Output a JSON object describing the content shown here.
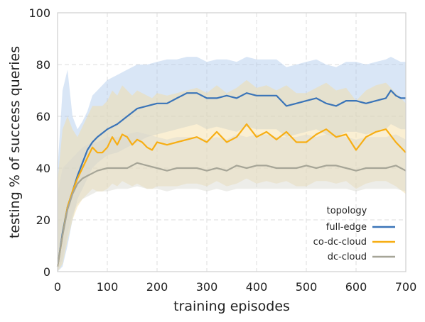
{
  "chart_data": {
    "type": "line",
    "title": "",
    "xlabel": "training episodes",
    "ylabel": "testing % of success queries",
    "xlim": [
      0,
      700
    ],
    "ylim": [
      0,
      100
    ],
    "xticks": [
      0,
      100,
      200,
      300,
      400,
      500,
      600,
      700
    ],
    "yticks": [
      0,
      20,
      40,
      60,
      80,
      100
    ],
    "grid": true,
    "legend": {
      "title": "topology",
      "position": "lower-right"
    },
    "series": [
      {
        "name": "full-edge",
        "color": "#3a74b8",
        "band_color": "#aac8ea",
        "x": [
          0,
          10,
          20,
          30,
          40,
          50,
          60,
          70,
          80,
          100,
          120,
          140,
          160,
          180,
          200,
          220,
          240,
          260,
          280,
          300,
          320,
          340,
          360,
          380,
          400,
          420,
          440,
          460,
          480,
          500,
          520,
          540,
          560,
          580,
          600,
          620,
          640,
          660,
          670,
          680,
          690,
          700
        ],
        "y": [
          2,
          15,
          25,
          31,
          37,
          42,
          47,
          50,
          52,
          55,
          57,
          60,
          63,
          64,
          65,
          65,
          67,
          69,
          69,
          67,
          67,
          68,
          67,
          69,
          68,
          68,
          68,
          64,
          65,
          66,
          67,
          65,
          64,
          66,
          66,
          65,
          66,
          67,
          70,
          68,
          67,
          67
        ],
        "lower": [
          0,
          2,
          10,
          20,
          28,
          32,
          36,
          40,
          42,
          45,
          46,
          48,
          50,
          52,
          53,
          54,
          55,
          56,
          57,
          55,
          56,
          55,
          54,
          56,
          55,
          55,
          55,
          52,
          53,
          54,
          55,
          53,
          52,
          54,
          54,
          53,
          54,
          55,
          57,
          56,
          55,
          55
        ],
        "upper": [
          40,
          70,
          78,
          60,
          55,
          58,
          62,
          68,
          70,
          74,
          76,
          78,
          80,
          80,
          81,
          82,
          82,
          83,
          83,
          81,
          82,
          82,
          81,
          83,
          82,
          82,
          82,
          79,
          80,
          81,
          82,
          80,
          79,
          81,
          81,
          80,
          81,
          82,
          83,
          82,
          81,
          81
        ]
      },
      {
        "name": "co-dc-cloud",
        "color": "#f7ae14",
        "band_color": "#f5dc9e",
        "x": [
          0,
          10,
          20,
          30,
          40,
          50,
          60,
          70,
          80,
          90,
          100,
          110,
          120,
          130,
          140,
          150,
          160,
          170,
          180,
          190,
          200,
          220,
          240,
          260,
          280,
          300,
          320,
          340,
          360,
          380,
          400,
          420,
          440,
          460,
          480,
          500,
          520,
          540,
          560,
          580,
          600,
          620,
          640,
          660,
          680,
          700
        ],
        "y": [
          2,
          14,
          25,
          31,
          36,
          40,
          44,
          48,
          46,
          46,
          48,
          52,
          49,
          53,
          52,
          49,
          51,
          50,
          48,
          47,
          50,
          49,
          50,
          51,
          52,
          50,
          54,
          50,
          52,
          57,
          52,
          54,
          51,
          54,
          50,
          50,
          53,
          55,
          52,
          53,
          47,
          52,
          54,
          55,
          50,
          46
        ],
        "lower": [
          0,
          3,
          12,
          20,
          25,
          28,
          30,
          32,
          31,
          31,
          32,
          34,
          33,
          35,
          34,
          33,
          34,
          33,
          32,
          32,
          33,
          33,
          33,
          34,
          34,
          33,
          35,
          33,
          34,
          36,
          34,
          35,
          34,
          35,
          33,
          33,
          35,
          35,
          34,
          35,
          32,
          34,
          35,
          35,
          33,
          30
        ],
        "upper": [
          35,
          55,
          60,
          55,
          52,
          56,
          60,
          64,
          64,
          64,
          66,
          70,
          68,
          72,
          70,
          68,
          70,
          69,
          68,
          67,
          69,
          68,
          69,
          70,
          71,
          69,
          72,
          69,
          71,
          74,
          71,
          72,
          70,
          72,
          69,
          69,
          71,
          73,
          70,
          71,
          66,
          70,
          72,
          73,
          69,
          65
        ]
      },
      {
        "name": "dc-cloud",
        "color": "#a6a597",
        "band_color": "#d8d7cf",
        "x": [
          0,
          10,
          20,
          30,
          40,
          50,
          60,
          70,
          80,
          100,
          120,
          140,
          160,
          180,
          200,
          220,
          240,
          260,
          280,
          300,
          320,
          340,
          360,
          380,
          400,
          420,
          440,
          460,
          480,
          500,
          520,
          540,
          560,
          580,
          600,
          620,
          640,
          660,
          680,
          700
        ],
        "y": [
          2,
          14,
          24,
          30,
          34,
          36,
          37,
          38,
          39,
          40,
          40,
          40,
          42,
          41,
          40,
          39,
          40,
          40,
          40,
          39,
          40,
          39,
          41,
          40,
          41,
          41,
          40,
          40,
          40,
          41,
          40,
          41,
          41,
          40,
          39,
          40,
          40,
          40,
          41,
          39
        ],
        "lower": [
          0,
          5,
          15,
          22,
          26,
          28,
          29,
          30,
          31,
          31,
          32,
          32,
          33,
          32,
          32,
          31,
          32,
          32,
          32,
          31,
          32,
          31,
          32,
          32,
          32,
          32,
          32,
          32,
          32,
          32,
          32,
          32,
          32,
          32,
          31,
          32,
          32,
          32,
          32,
          31
        ],
        "upper": [
          30,
          40,
          42,
          44,
          46,
          48,
          49,
          50,
          50,
          52,
          52,
          53,
          54,
          53,
          52,
          51,
          52,
          52,
          52,
          51,
          52,
          51,
          53,
          52,
          53,
          53,
          52,
          52,
          52,
          53,
          52,
          53,
          53,
          52,
          51,
          52,
          52,
          52,
          53,
          51
        ]
      }
    ]
  }
}
